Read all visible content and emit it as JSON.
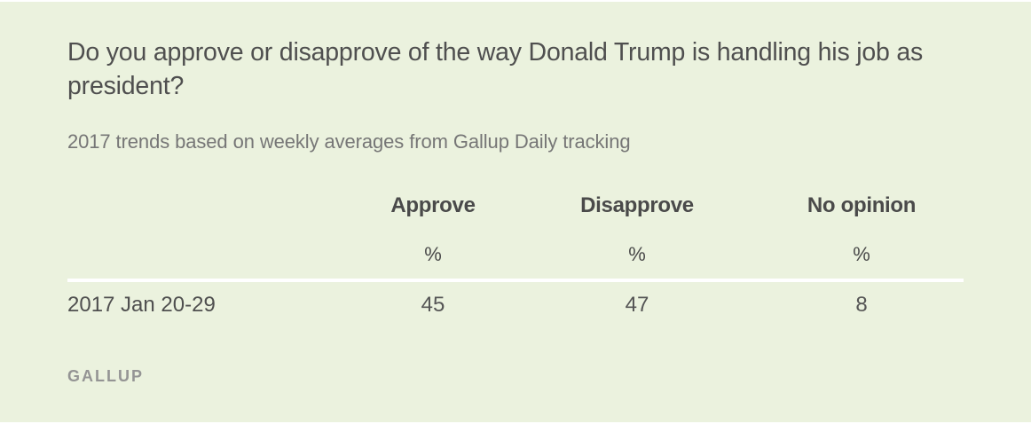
{
  "question": "Do you approve or disapprove of the way Donald Trump is handling his job as president?",
  "subtitle": "2017 trends based on weekly averages from Gallup Daily tracking",
  "table": {
    "columns": [
      {
        "label": "Approve",
        "unit": "%"
      },
      {
        "label": "Disapprove",
        "unit": "%"
      },
      {
        "label": "No opinion",
        "unit": "%"
      }
    ],
    "rows": [
      {
        "label": "2017 Jan 20-29",
        "values": [
          "45",
          "47",
          "8"
        ]
      }
    ]
  },
  "source": "GALLUP",
  "colors": {
    "background": "#ebf2de",
    "rule": "#ffffff",
    "title_text": "#4f4f4f",
    "subtitle_text": "#767676",
    "source_text": "#949494"
  }
}
